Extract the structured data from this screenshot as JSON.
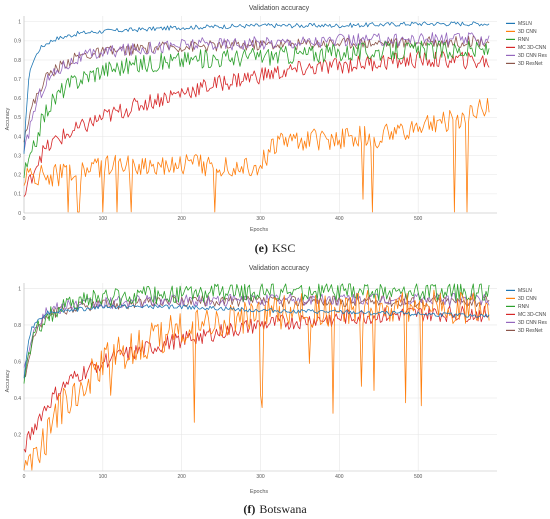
{
  "chart_data": [
    {
      "type": "line",
      "title": "Validation accuracy",
      "xlabel": "Epochs",
      "ylabel": "Accuracy",
      "caption_letter": "(e)",
      "caption_name": "KSC",
      "xlim": [
        0,
        600
      ],
      "ylim": [
        0,
        1.03
      ],
      "x_ticks": [
        0,
        100,
        200,
        300,
        400,
        500
      ],
      "y_ticks": [
        0,
        0.1,
        0.2,
        0.3,
        0.4,
        0.5,
        0.6,
        0.7,
        0.8,
        0.9,
        1
      ],
      "y_tick_labels": [
        "0",
        "0.1",
        "0.2",
        "0.3",
        "0.4",
        "0.5",
        "0.6",
        "0.7",
        "0.8",
        "0.9",
        "1"
      ],
      "grid": true,
      "legend_position": "top-right",
      "series": [
        {
          "name": "MSLN",
          "color": "#1f77b4",
          "x": [
            0,
            3,
            6,
            10,
            15,
            20,
            30,
            40,
            50,
            70,
            100,
            150,
            200,
            300,
            400,
            500,
            590
          ],
          "y": [
            0.3,
            0.55,
            0.7,
            0.78,
            0.82,
            0.86,
            0.89,
            0.91,
            0.92,
            0.94,
            0.95,
            0.96,
            0.97,
            0.98,
            0.98,
            0.99,
            0.99
          ]
        },
        {
          "name": "3D CNN",
          "color": "#ff7f0e",
          "x": [
            0,
            50,
            70,
            100,
            150,
            200,
            250,
            300,
            320,
            350,
            400,
            450,
            500,
            550,
            590
          ],
          "y": [
            0.19,
            0.2,
            0.22,
            0.24,
            0.25,
            0.26,
            0.25,
            0.25,
            0.37,
            0.38,
            0.39,
            0.4,
            0.45,
            0.5,
            0.55
          ]
        },
        {
          "name": "RNN",
          "color": "#2ca02c",
          "x": [
            0,
            10,
            20,
            30,
            50,
            70,
            100,
            150,
            200,
            300,
            400,
            500,
            590
          ],
          "y": [
            0.2,
            0.3,
            0.45,
            0.55,
            0.65,
            0.7,
            0.75,
            0.78,
            0.8,
            0.82,
            0.84,
            0.85,
            0.85
          ]
        },
        {
          "name": "MC 3D-CNN",
          "color": "#d62728",
          "x": [
            0,
            10,
            20,
            40,
            60,
            80,
            100,
            150,
            200,
            250,
            300,
            350,
            400,
            450,
            500,
            550,
            590
          ],
          "y": [
            0.08,
            0.2,
            0.3,
            0.38,
            0.42,
            0.46,
            0.5,
            0.57,
            0.63,
            0.68,
            0.72,
            0.75,
            0.77,
            0.79,
            0.8,
            0.8,
            0.79
          ]
        },
        {
          "name": "3D CNN Res",
          "color": "#9467bd",
          "x": [
            0,
            10,
            20,
            30,
            50,
            70,
            100,
            150,
            200,
            300,
            400,
            500,
            590
          ],
          "y": [
            0.3,
            0.5,
            0.62,
            0.7,
            0.77,
            0.81,
            0.84,
            0.86,
            0.88,
            0.89,
            0.9,
            0.91,
            0.91
          ]
        },
        {
          "name": "3D ResNet",
          "color": "#8c564b",
          "x": [
            0,
            10,
            20,
            30,
            50,
            70,
            100,
            150,
            200,
            300,
            400,
            500,
            590
          ],
          "y": [
            0.4,
            0.55,
            0.65,
            0.72,
            0.78,
            0.82,
            0.84,
            0.86,
            0.87,
            0.88,
            0.89,
            0.89,
            0.9
          ]
        }
      ]
    },
    {
      "type": "line",
      "title": "Validation accuracy",
      "xlabel": "Epochs",
      "ylabel": "Accuracy",
      "caption_letter": "(f)",
      "caption_name": "Botswana",
      "xlim": [
        0,
        600
      ],
      "ylim": [
        0,
        1.03
      ],
      "x_ticks": [
        0,
        100,
        200,
        300,
        400,
        500
      ],
      "y_ticks": [
        0.2,
        0.4,
        0.6,
        0.8,
        1
      ],
      "y_tick_labels": [
        "0.2",
        "0.4",
        "0.6",
        "0.8",
        "1"
      ],
      "grid": true,
      "legend_position": "top-right",
      "series": [
        {
          "name": "MSLN",
          "color": "#1f77b4",
          "x": [
            0,
            5,
            10,
            20,
            30,
            50,
            80,
            100,
            150,
            200,
            300,
            400,
            500,
            590
          ],
          "y": [
            0.5,
            0.7,
            0.78,
            0.84,
            0.87,
            0.88,
            0.89,
            0.9,
            0.9,
            0.9,
            0.88,
            0.87,
            0.86,
            0.85
          ]
        },
        {
          "name": "3D CNN",
          "color": "#ff7f0e",
          "x": [
            0,
            20,
            40,
            60,
            80,
            100,
            150,
            200,
            250,
            300,
            350,
            400,
            450,
            500,
            550,
            590
          ],
          "y": [
            0.05,
            0.1,
            0.3,
            0.42,
            0.5,
            0.6,
            0.7,
            0.78,
            0.83,
            0.86,
            0.88,
            0.89,
            0.9,
            0.9,
            0.9,
            0.9
          ]
        },
        {
          "name": "RNN",
          "color": "#2ca02c",
          "x": [
            0,
            10,
            20,
            30,
            50,
            70,
            100,
            150,
            200,
            300,
            400,
            500,
            590
          ],
          "y": [
            0.5,
            0.7,
            0.8,
            0.85,
            0.9,
            0.93,
            0.95,
            0.96,
            0.97,
            0.98,
            0.98,
            0.98,
            0.98
          ]
        },
        {
          "name": "MC 3D-CNN",
          "color": "#d62728",
          "x": [
            0,
            20,
            40,
            60,
            80,
            100,
            150,
            200,
            250,
            300,
            350,
            400,
            450,
            500,
            550,
            590
          ],
          "y": [
            0.12,
            0.3,
            0.42,
            0.5,
            0.55,
            0.6,
            0.66,
            0.72,
            0.76,
            0.8,
            0.82,
            0.84,
            0.85,
            0.86,
            0.86,
            0.86
          ]
        },
        {
          "name": "3D CNN Res",
          "color": "#9467bd",
          "x": [
            0,
            10,
            20,
            30,
            50,
            70,
            100,
            150,
            200,
            300,
            400,
            500,
            590
          ],
          "y": [
            0.55,
            0.75,
            0.83,
            0.87,
            0.9,
            0.91,
            0.92,
            0.93,
            0.93,
            0.94,
            0.94,
            0.94,
            0.94
          ]
        },
        {
          "name": "3D ResNet",
          "color": "#8c564b",
          "x": [
            0,
            10,
            20,
            30,
            50,
            70,
            100,
            150,
            200,
            300,
            400,
            500,
            590
          ],
          "y": [
            0.5,
            0.7,
            0.8,
            0.85,
            0.88,
            0.9,
            0.91,
            0.92,
            0.93,
            0.93,
            0.93,
            0.93,
            0.93
          ]
        }
      ]
    }
  ]
}
